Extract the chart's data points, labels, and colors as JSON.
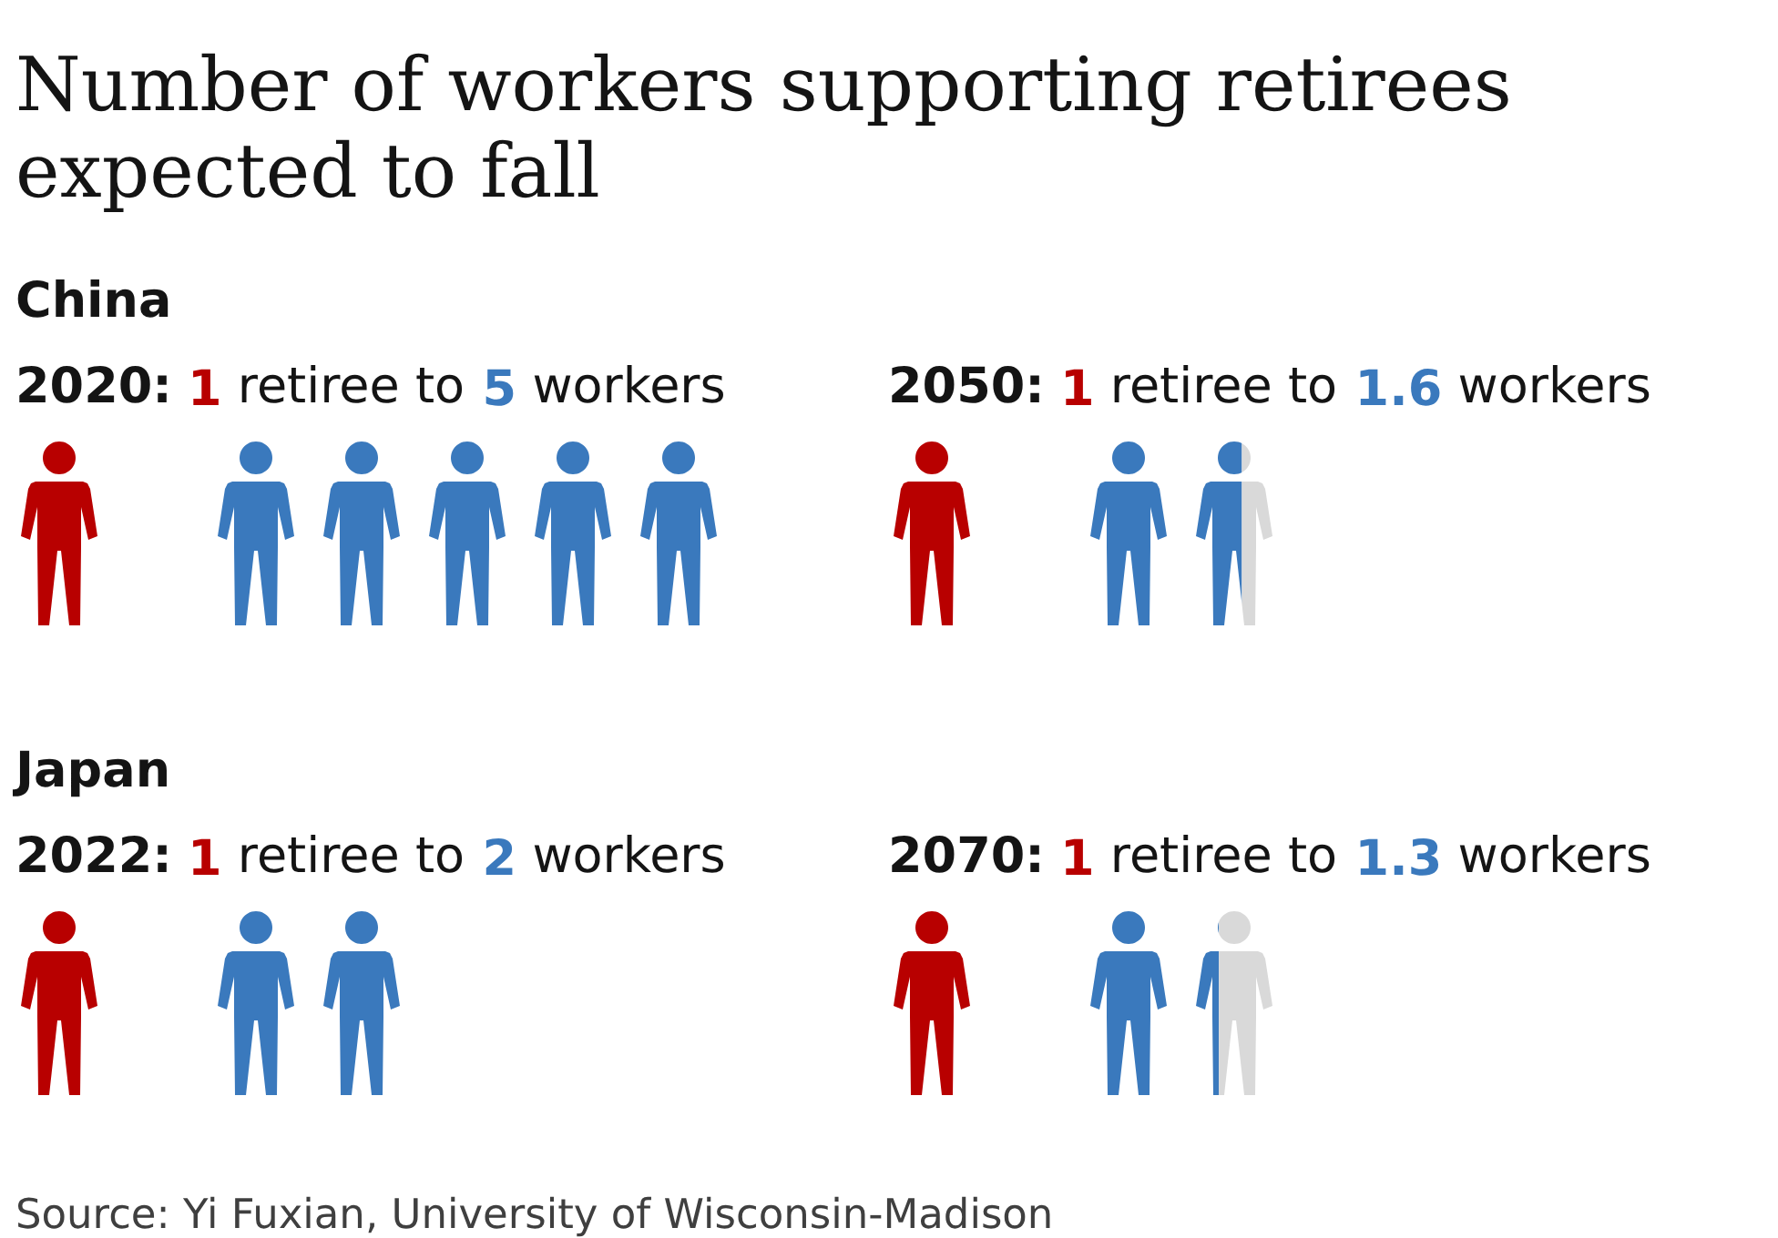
{
  "chart_data": [
    {
      "type": "other",
      "title": "Number of workers supporting retirees expected to fall",
      "annotations": [
        "Source: Yi Fuxian, University of Wisconsin-Madison"
      ]
    },
    {
      "type": "other",
      "title": "China",
      "subtitle": "2020:",
      "categories": [
        "retiree to",
        "workers"
      ],
      "values": [
        1,
        5
      ],
      "colors": [
        "#b80000",
        "#3a79bd"
      ],
      "data_labels": true
    },
    {
      "type": "other",
      "subtitle": "2050:",
      "categories": [
        "retiree to",
        "workers"
      ],
      "values": [
        1,
        1.6
      ],
      "colors": [
        "#b80000",
        "#3a79bd"
      ],
      "data_labels": true
    },
    {
      "type": "other",
      "title": "Japan",
      "subtitle": "2022:",
      "categories": [
        "retiree to",
        "workers"
      ],
      "values": [
        1,
        2
      ],
      "colors": [
        "#b80000",
        "#3a79bd"
      ],
      "data_labels": true
    },
    {
      "type": "other",
      "subtitle": "2070:",
      "categories": [
        "retiree to",
        "workers"
      ],
      "values": [
        1,
        1.3
      ],
      "colors": [
        "#b80000",
        "#3a79bd"
      ],
      "data_labels": true
    }
  ]
}
